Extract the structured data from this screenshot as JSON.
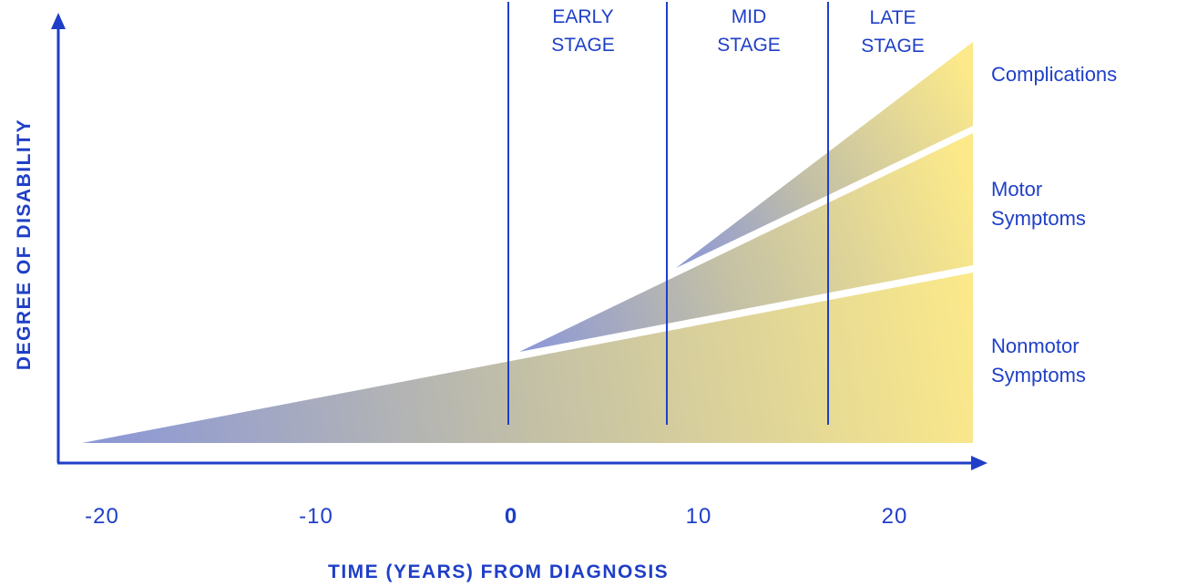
{
  "axes": {
    "y_title": "DEGREE OF DISABILITY",
    "x_title": "TIME (YEARS) FROM DIAGNOSIS",
    "ticks": [
      {
        "label": "-20",
        "bold": false
      },
      {
        "label": "-10",
        "bold": false
      },
      {
        "label": "0",
        "bold": true
      },
      {
        "label": "10",
        "bold": false
      },
      {
        "label": "20",
        "bold": false
      }
    ]
  },
  "stages": [
    {
      "line1": "EARLY",
      "line2": "STAGE"
    },
    {
      "line1": "MID",
      "line2": "STAGE"
    },
    {
      "line1": "LATE",
      "line2": "STAGE"
    }
  ],
  "regions": [
    {
      "line1": "Complications",
      "line2": ""
    },
    {
      "line1": "Motor",
      "line2": "Symptoms"
    },
    {
      "line1": "Nonmotor",
      "line2": "Symptoms"
    }
  ],
  "colors": {
    "axis": "#1f3fc7",
    "gradient_start": "#8a96d8",
    "gradient_mid": "#c3c0a6",
    "gradient_end": "#fbe98a"
  }
}
